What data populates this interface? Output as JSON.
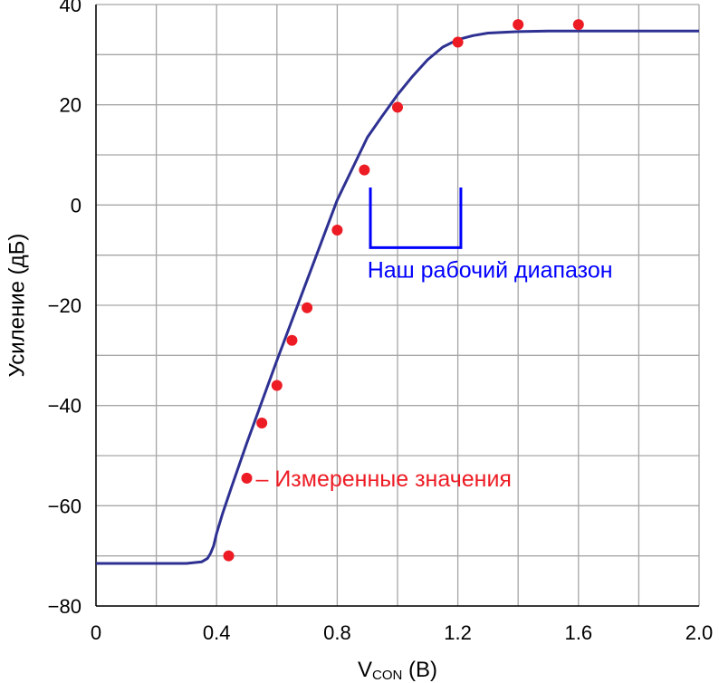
{
  "chart_data": {
    "type": "line",
    "xlabel_main": "V",
    "xlabel_sub": "CON",
    "xlabel_unit": " (В)",
    "ylabel": "Усиление (дБ)",
    "xlim": [
      0,
      2.0
    ],
    "ylim": [
      -80,
      40
    ],
    "x_ticks": [
      0,
      0.2,
      0.4,
      0.6,
      0.8,
      1.0,
      1.2,
      1.4,
      1.6,
      1.8,
      2.0
    ],
    "x_tick_labels": [
      "0",
      "0.4",
      "0.8",
      "1.2",
      "1.6",
      "2.0"
    ],
    "x_tick_label_values": [
      0,
      0.4,
      0.8,
      1.2,
      1.6,
      2.0
    ],
    "y_ticks": [
      -80,
      -70,
      -60,
      -50,
      -40,
      -30,
      -20,
      -10,
      0,
      10,
      20,
      30,
      40
    ],
    "y_tick_labels": [
      "−80",
      "−60",
      "−40",
      "−20",
      "0",
      "20",
      "40"
    ],
    "y_tick_label_values": [
      -80,
      -60,
      -40,
      -20,
      0,
      20,
      40
    ],
    "grid": true,
    "colors": {
      "curve": "#2e3192",
      "points": "#ed1c24",
      "range": "#0000ff",
      "grid": "#a6a6a6",
      "background": "#ffffff"
    },
    "series": [
      {
        "kind": "curve",
        "x": [
          0,
          0.1,
          0.2,
          0.3,
          0.35,
          0.37,
          0.38,
          0.39,
          0.4,
          0.42,
          0.45,
          0.5,
          0.6,
          0.7,
          0.8,
          0.9,
          0.95,
          1.0,
          1.05,
          1.1,
          1.15,
          1.2,
          1.25,
          1.3,
          1.4,
          1.5,
          1.6,
          1.8,
          2.0
        ],
        "y": [
          -71.5,
          -71.5,
          -71.5,
          -71.5,
          -71.2,
          -70.5,
          -69.5,
          -68.0,
          -65.5,
          -61.5,
          -56.2,
          -47.5,
          -31.0,
          -15.0,
          1.0,
          13.5,
          17.8,
          22.0,
          25.7,
          29.0,
          31.5,
          33.0,
          33.8,
          34.3,
          34.6,
          34.7,
          34.7,
          34.7,
          34.7
        ]
      },
      {
        "kind": "points",
        "x": [
          0.44,
          0.55,
          0.6,
          0.65,
          0.7,
          0.8,
          0.89,
          1.0,
          1.2,
          1.4,
          1.6
        ],
        "y": [
          -70,
          -43.5,
          -36,
          -27,
          -20.5,
          -5,
          7,
          19.5,
          32.5,
          36,
          36
        ]
      }
    ],
    "annotations": {
      "range_label": "Наш рабочий диапазон",
      "range_bracket": {
        "x_start": 0.91,
        "x_end": 1.21,
        "y_top": 3.5,
        "y_bottom": -8.5
      },
      "range_label_pos": {
        "x": 0.9,
        "y": -14.5
      },
      "measured_label": "– Измеренные значения",
      "measured_marker": {
        "x": 0.5,
        "y": -54.5
      },
      "measured_label_pos": {
        "x": 0.53,
        "y": -54.5
      }
    }
  }
}
